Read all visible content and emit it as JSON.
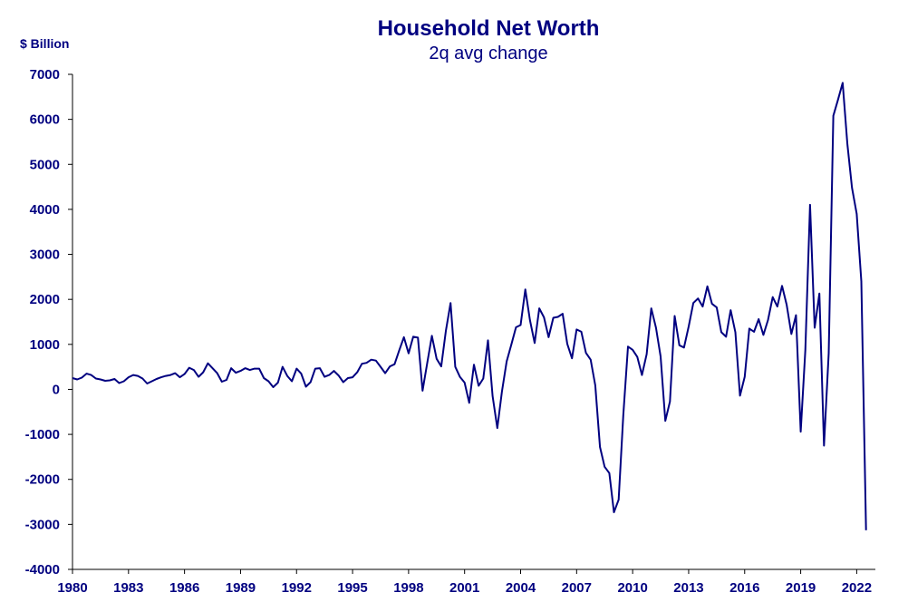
{
  "chart_data": {
    "type": "line",
    "title": "Household Net Worth",
    "subtitle": "2q avg change",
    "ylabel": "$ Billion",
    "xlabel": "",
    "color": "#000080",
    "xlim": [
      1980,
      2023
    ],
    "ylim": [
      -4000,
      7000
    ],
    "grid": false,
    "x_ticks": [
      "1980",
      "1983",
      "1986",
      "1989",
      "1992",
      "1995",
      "1998",
      "2001",
      "2004",
      "2007",
      "2010",
      "2013",
      "2016",
      "2019",
      "2022"
    ],
    "y_ticks": [
      "7000",
      "6000",
      "5000",
      "4000",
      "3000",
      "2000",
      "1000",
      "0",
      "-1000",
      "-2000",
      "-3000",
      "-4000"
    ],
    "series": [
      {
        "values": [
          [
            1980.0,
            250
          ],
          [
            1980.25,
            220
          ],
          [
            1980.5,
            260
          ],
          [
            1980.75,
            350
          ],
          [
            1981.0,
            320
          ],
          [
            1981.25,
            240
          ],
          [
            1981.5,
            220
          ],
          [
            1981.75,
            190
          ],
          [
            1982.0,
            200
          ],
          [
            1982.25,
            230
          ],
          [
            1982.5,
            140
          ],
          [
            1982.75,
            180
          ],
          [
            1983.0,
            270
          ],
          [
            1983.25,
            320
          ],
          [
            1983.5,
            300
          ],
          [
            1983.75,
            240
          ],
          [
            1984.0,
            130
          ],
          [
            1984.25,
            180
          ],
          [
            1984.5,
            230
          ],
          [
            1984.75,
            270
          ],
          [
            1985.0,
            300
          ],
          [
            1985.25,
            320
          ],
          [
            1985.5,
            360
          ],
          [
            1985.75,
            270
          ],
          [
            1986.0,
            340
          ],
          [
            1986.25,
            480
          ],
          [
            1986.5,
            430
          ],
          [
            1986.75,
            280
          ],
          [
            1987.0,
            380
          ],
          [
            1987.25,
            580
          ],
          [
            1987.5,
            470
          ],
          [
            1987.75,
            360
          ],
          [
            1988.0,
            170
          ],
          [
            1988.25,
            210
          ],
          [
            1988.5,
            470
          ],
          [
            1988.75,
            370
          ],
          [
            1989.0,
            410
          ],
          [
            1989.25,
            470
          ],
          [
            1989.5,
            430
          ],
          [
            1989.75,
            460
          ],
          [
            1990.0,
            460
          ],
          [
            1990.25,
            250
          ],
          [
            1990.5,
            180
          ],
          [
            1990.75,
            50
          ],
          [
            1991.0,
            150
          ],
          [
            1991.25,
            500
          ],
          [
            1991.5,
            300
          ],
          [
            1991.75,
            180
          ],
          [
            1992.0,
            460
          ],
          [
            1992.25,
            350
          ],
          [
            1992.5,
            60
          ],
          [
            1992.75,
            160
          ],
          [
            1993.0,
            460
          ],
          [
            1993.25,
            470
          ],
          [
            1993.5,
            280
          ],
          [
            1993.75,
            320
          ],
          [
            1994.0,
            410
          ],
          [
            1994.25,
            310
          ],
          [
            1994.5,
            160
          ],
          [
            1994.75,
            250
          ],
          [
            1995.0,
            270
          ],
          [
            1995.25,
            380
          ],
          [
            1995.5,
            570
          ],
          [
            1995.75,
            590
          ],
          [
            1996.0,
            660
          ],
          [
            1996.25,
            640
          ],
          [
            1996.5,
            500
          ],
          [
            1996.75,
            360
          ],
          [
            1997.0,
            510
          ],
          [
            1997.25,
            560
          ],
          [
            1997.5,
            870
          ],
          [
            1997.75,
            1160
          ],
          [
            1998.0,
            800
          ],
          [
            1998.25,
            1170
          ],
          [
            1998.5,
            1150
          ],
          [
            1998.75,
            -30
          ],
          [
            1999.0,
            590
          ],
          [
            1999.25,
            1190
          ],
          [
            1999.5,
            680
          ],
          [
            1999.75,
            510
          ],
          [
            2000.0,
            1310
          ],
          [
            2000.25,
            1920
          ],
          [
            2000.5,
            500
          ],
          [
            2000.75,
            280
          ],
          [
            2001.0,
            150
          ],
          [
            2001.25,
            -300
          ],
          [
            2001.5,
            550
          ],
          [
            2001.75,
            80
          ],
          [
            2002.0,
            240
          ],
          [
            2002.25,
            1090
          ],
          [
            2002.5,
            -150
          ],
          [
            2002.75,
            -860
          ],
          [
            2003.0,
            -50
          ],
          [
            2003.25,
            620
          ],
          [
            2003.5,
            990
          ],
          [
            2003.75,
            1380
          ],
          [
            2004.0,
            1430
          ],
          [
            2004.25,
            2220
          ],
          [
            2004.5,
            1540
          ],
          [
            2004.75,
            1030
          ],
          [
            2005.0,
            1800
          ],
          [
            2005.25,
            1600
          ],
          [
            2005.5,
            1160
          ],
          [
            2005.75,
            1590
          ],
          [
            2006.0,
            1610
          ],
          [
            2006.25,
            1680
          ],
          [
            2006.5,
            1010
          ],
          [
            2006.75,
            690
          ],
          [
            2007.0,
            1330
          ],
          [
            2007.25,
            1280
          ],
          [
            2007.5,
            810
          ],
          [
            2007.75,
            660
          ],
          [
            2008.0,
            90
          ],
          [
            2008.25,
            -1280
          ],
          [
            2008.5,
            -1720
          ],
          [
            2008.75,
            -1860
          ],
          [
            2009.0,
            -2730
          ],
          [
            2009.25,
            -2450
          ],
          [
            2009.5,
            -580
          ],
          [
            2009.75,
            950
          ],
          [
            2010.0,
            880
          ],
          [
            2010.25,
            720
          ],
          [
            2010.5,
            320
          ],
          [
            2010.75,
            780
          ],
          [
            2011.0,
            1800
          ],
          [
            2011.25,
            1370
          ],
          [
            2011.5,
            730
          ],
          [
            2011.75,
            -700
          ],
          [
            2012.0,
            -270
          ],
          [
            2012.25,
            1630
          ],
          [
            2012.5,
            980
          ],
          [
            2012.75,
            930
          ],
          [
            2013.0,
            1400
          ],
          [
            2013.25,
            1920
          ],
          [
            2013.5,
            2020
          ],
          [
            2013.75,
            1840
          ],
          [
            2014.0,
            2290
          ],
          [
            2014.25,
            1900
          ],
          [
            2014.5,
            1820
          ],
          [
            2014.75,
            1270
          ],
          [
            2015.0,
            1170
          ],
          [
            2015.25,
            1760
          ],
          [
            2015.5,
            1270
          ],
          [
            2015.75,
            -140
          ],
          [
            2016.0,
            280
          ],
          [
            2016.25,
            1350
          ],
          [
            2016.5,
            1280
          ],
          [
            2016.75,
            1560
          ],
          [
            2017.0,
            1210
          ],
          [
            2017.25,
            1540
          ],
          [
            2017.5,
            2050
          ],
          [
            2017.75,
            1840
          ],
          [
            2018.0,
            2300
          ],
          [
            2018.25,
            1880
          ],
          [
            2018.5,
            1230
          ],
          [
            2018.75,
            1650
          ],
          [
            2019.0,
            -940
          ],
          [
            2019.25,
            870
          ],
          [
            2019.5,
            4100
          ],
          [
            2019.75,
            1370
          ],
          [
            2020.0,
            2130
          ],
          [
            2020.25,
            -1250
          ],
          [
            2020.5,
            800
          ],
          [
            2020.75,
            6080
          ],
          [
            2021.0,
            6440
          ],
          [
            2021.25,
            6810
          ],
          [
            2021.5,
            5450
          ],
          [
            2021.75,
            4480
          ],
          [
            2022.0,
            3900
          ],
          [
            2022.25,
            2400
          ],
          [
            2022.5,
            -3130
          ]
        ]
      }
    ]
  }
}
